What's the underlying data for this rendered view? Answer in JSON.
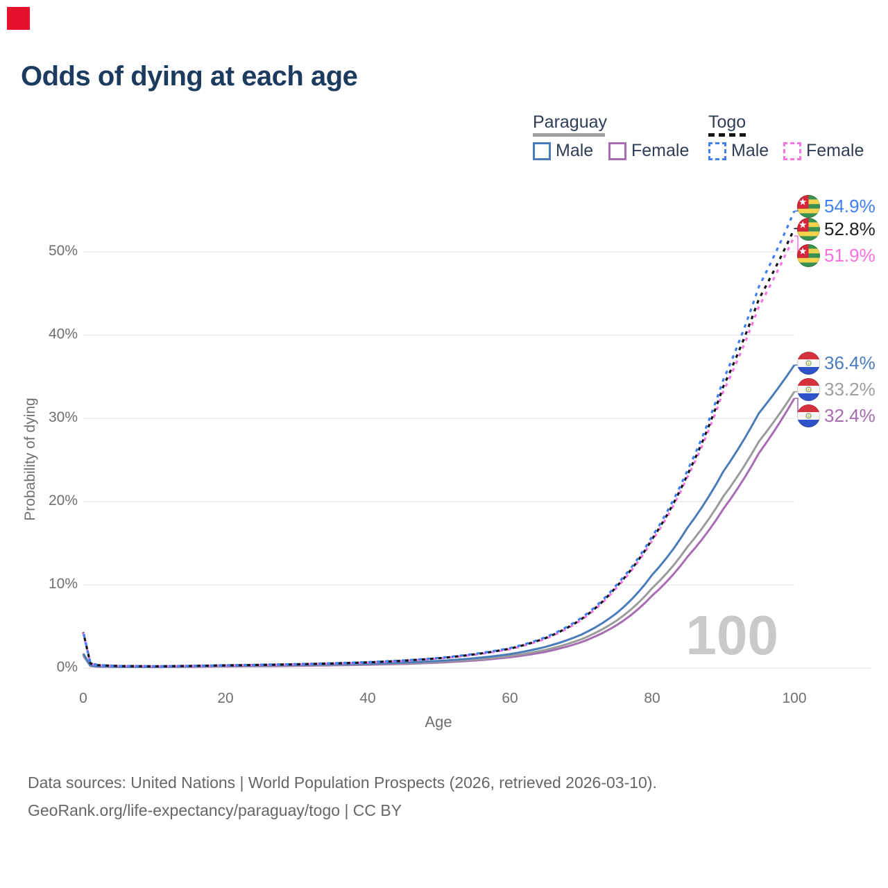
{
  "decorations": {
    "corner_square_color": "#e8112d"
  },
  "title": "Odds of dying at each age",
  "legend": {
    "groups": [
      {
        "name": "Paraguay",
        "line_style": "solid",
        "combined_line_color": "#9e9e9e",
        "items": [
          {
            "label": "Male",
            "color": "#4b7cba"
          },
          {
            "label": "Female",
            "color": "#a76cb2"
          }
        ]
      },
      {
        "name": "Togo",
        "line_style": "dashed",
        "combined_line_color": "#141414",
        "items": [
          {
            "label": "Male",
            "color": "#3f7ff2"
          },
          {
            "label": "Female",
            "color": "#f775e6"
          }
        ]
      }
    ]
  },
  "chart_data": {
    "type": "line",
    "title": "Odds of dying at each age",
    "xlabel": "Age",
    "ylabel": "Probability of dying",
    "xlim": [
      0,
      100
    ],
    "ylim_percent": [
      0,
      56
    ],
    "grid": "horizontal",
    "xtick_labels": [
      "0",
      "20",
      "40",
      "60",
      "80",
      "100"
    ],
    "ytick_labels": [
      "0%",
      "10%",
      "20%",
      "30%",
      "40%",
      "50%"
    ],
    "watermark": "100",
    "x": [
      0,
      1,
      2,
      5,
      10,
      15,
      20,
      25,
      30,
      35,
      40,
      45,
      50,
      55,
      60,
      65,
      70,
      75,
      80,
      85,
      90,
      95,
      100
    ],
    "series": [
      {
        "id": "togo-male",
        "name": "Togo Male",
        "flag": "togo",
        "line_style": "dashed",
        "color": "#3f7ff2",
        "label_color": "#3f7ff2",
        "end_label": "54.9%",
        "values": [
          4.4,
          0.6,
          0.38,
          0.26,
          0.23,
          0.27,
          0.34,
          0.41,
          0.48,
          0.58,
          0.72,
          0.92,
          1.22,
          1.7,
          2.4,
          3.7,
          6.0,
          10.0,
          15.8,
          23.8,
          34.6,
          45.8,
          54.9
        ]
      },
      {
        "id": "togo-combined",
        "name": "Togo Both Sexes",
        "flag": "togo",
        "line_style": "dashed",
        "color": "#141414",
        "label_color": "#222222",
        "end_label": "52.8%",
        "values": [
          4.3,
          0.57,
          0.36,
          0.25,
          0.22,
          0.26,
          0.33,
          0.39,
          0.46,
          0.56,
          0.69,
          0.89,
          1.18,
          1.65,
          2.33,
          3.6,
          5.85,
          9.8,
          15.5,
          23.3,
          33.8,
          44.3,
          52.8
        ]
      },
      {
        "id": "togo-female",
        "name": "Togo Female",
        "flag": "togo",
        "line_style": "dashed",
        "color": "#f775e6",
        "label_color": "#fb6ede",
        "end_label": "51.9%",
        "values": [
          4.2,
          0.54,
          0.34,
          0.24,
          0.21,
          0.25,
          0.31,
          0.38,
          0.45,
          0.54,
          0.67,
          0.86,
          1.15,
          1.6,
          2.27,
          3.52,
          5.75,
          9.65,
          15.3,
          23.0,
          33.2,
          43.4,
          51.9
        ]
      },
      {
        "id": "paraguay-male",
        "name": "Paraguay Male",
        "flag": "paraguay",
        "line_style": "solid",
        "color": "#4b7cba",
        "label_color": "#4a7cc0",
        "end_label": "36.4%",
        "values": [
          1.75,
          0.32,
          0.21,
          0.16,
          0.15,
          0.21,
          0.28,
          0.33,
          0.38,
          0.45,
          0.53,
          0.66,
          0.86,
          1.18,
          1.68,
          2.55,
          4.0,
          6.6,
          11.2,
          16.9,
          23.6,
          30.6,
          36.4
        ]
      },
      {
        "id": "paraguay-combined",
        "name": "Paraguay Both Sexes",
        "flag": "paraguay",
        "line_style": "solid",
        "color": "#9b9b9b",
        "label_color": "#9e9e9e",
        "end_label": "33.2%",
        "values": [
          1.62,
          0.29,
          0.19,
          0.14,
          0.13,
          0.18,
          0.24,
          0.28,
          0.33,
          0.39,
          0.46,
          0.58,
          0.75,
          1.02,
          1.45,
          2.18,
          3.45,
          5.7,
          9.6,
          14.6,
          20.6,
          27.2,
          33.2
        ]
      },
      {
        "id": "paraguay-female",
        "name": "Paraguay Female",
        "flag": "paraguay",
        "line_style": "solid",
        "color": "#a76cb2",
        "label_color": "#a76ab0",
        "end_label": "32.4%",
        "values": [
          1.5,
          0.26,
          0.17,
          0.13,
          0.12,
          0.15,
          0.19,
          0.23,
          0.27,
          0.33,
          0.4,
          0.5,
          0.66,
          0.9,
          1.3,
          1.95,
          3.1,
          5.15,
          8.7,
          13.4,
          19.1,
          25.8,
          32.4
        ]
      }
    ]
  },
  "footer": {
    "line1": "Data sources: United Nations | World Population Prospects (2026, retrieved 2026-03-10).",
    "line2": "GeoRank.org/life-expectancy/paraguay/togo | CC BY"
  }
}
